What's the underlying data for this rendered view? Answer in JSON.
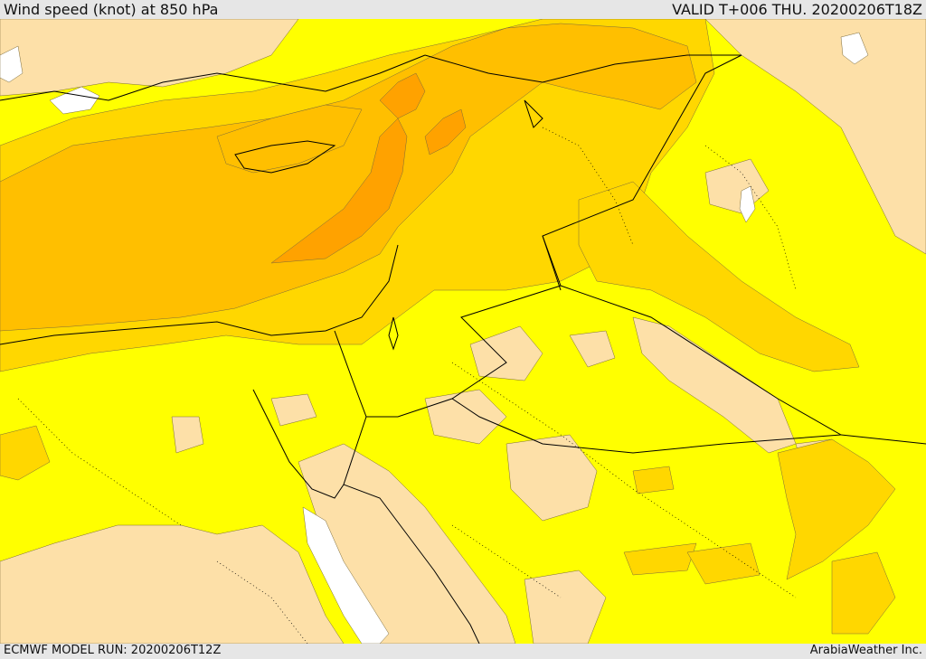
{
  "header": {
    "title": "Wind speed (knot) at 850 hPa",
    "valid": "VALID T+006 THU. 20200206T18Z"
  },
  "footer": {
    "model_run": "ECMWF MODEL RUN: 20200206T12Z",
    "brand": "ArabiaWeather Inc."
  },
  "map": {
    "palette": {
      "calm": "#ffffff",
      "light": "#fde0a8",
      "moderate": "#ffff00",
      "fresh": "#ffd700",
      "strong": "#ffbf00",
      "gale": "#ffa200",
      "coastline": "#000000"
    }
  }
}
